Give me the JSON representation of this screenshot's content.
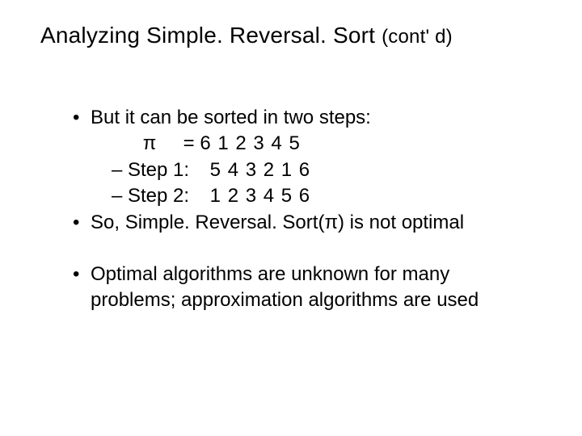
{
  "title_main": "Analyzing Simple. Reversal. Sort ",
  "title_sub": "(cont' d)",
  "line1": "But it can be sorted in two steps:",
  "pi_line": {
    "symbol": "π",
    "eq": " = ",
    "seq": "6 1 2 3 4 5"
  },
  "step1": {
    "label": "Step 1:",
    "seq": "5 4 3 2 1 6"
  },
  "step2": {
    "label": "Step 2:",
    "seq": "1 2 3 4 5 6"
  },
  "line_so_a": "So, Simple. Reversal. Sort(",
  "line_so_pi": "π",
  "line_so_b": ") is not optimal",
  "line_opt_a": "Optimal algorithms are unknown for many",
  "line_opt_b": "problems; approximation algorithms are used",
  "colors": {
    "text": "#000000",
    "background": "#ffffff"
  },
  "fonts": {
    "family": "Arial",
    "title_size_pt": 28,
    "body_size_pt": 24
  }
}
